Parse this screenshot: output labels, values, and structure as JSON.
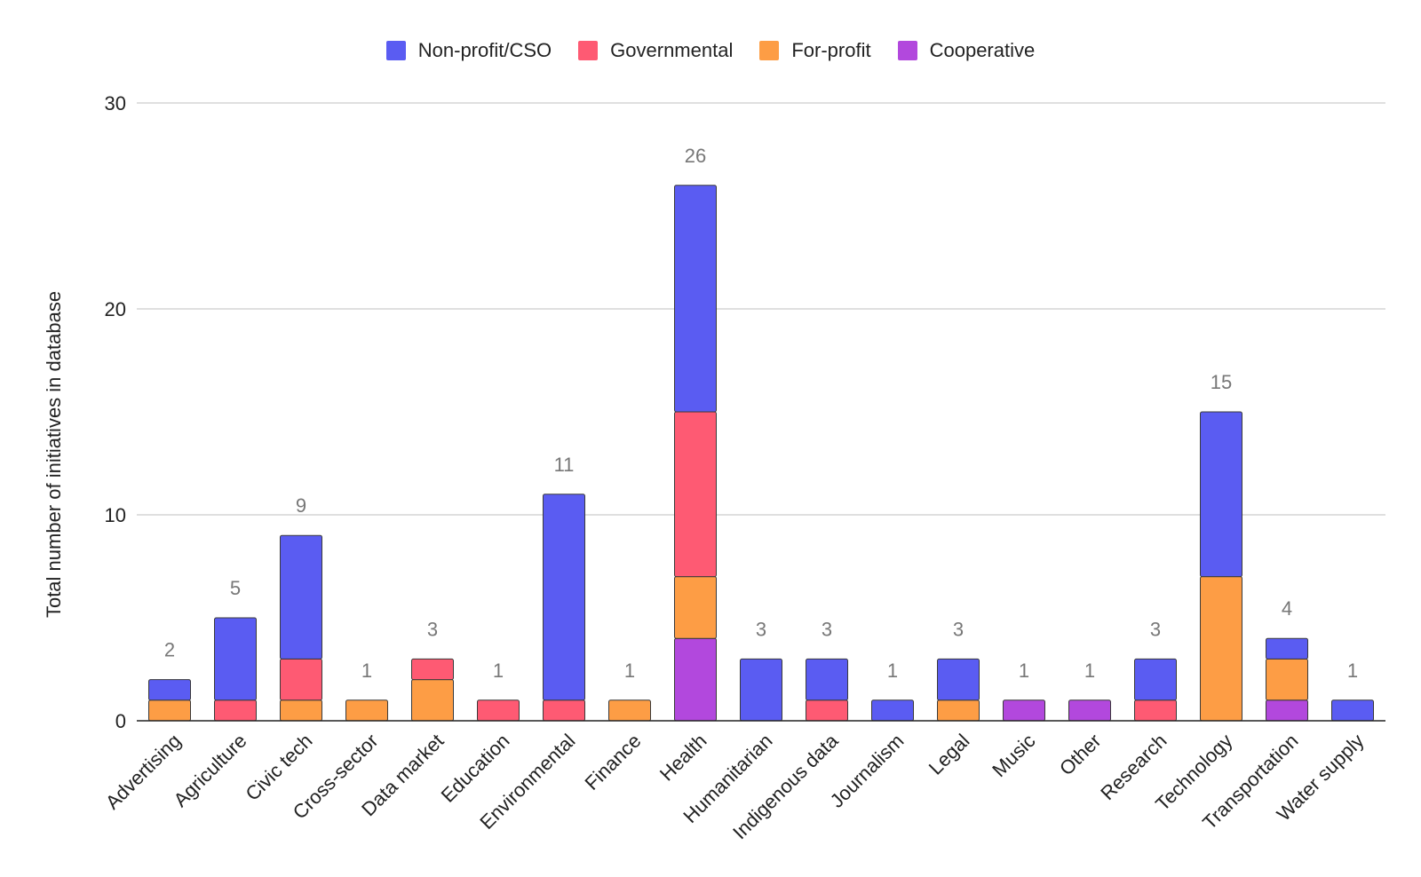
{
  "chart_data": {
    "type": "bar",
    "stacked": true,
    "ylabel": "Total number of initiatives in database",
    "xlabel": "",
    "ylim": [
      0,
      30
    ],
    "yticks": [
      0,
      10,
      20,
      30
    ],
    "grid": true,
    "legend_position": "top-center",
    "categories": [
      "Advertising",
      "Agriculture",
      "Civic tech",
      "Cross-sector",
      "Data market",
      "Education",
      "Environmental",
      "Finance",
      "Health",
      "Humanitarian",
      "Indigenous data",
      "Journalism",
      "Legal",
      "Music",
      "Other",
      "Research",
      "Technology",
      "Transportation",
      "Water supply"
    ],
    "totals": [
      2,
      5,
      9,
      1,
      3,
      1,
      11,
      1,
      26,
      3,
      3,
      1,
      3,
      1,
      1,
      3,
      15,
      4,
      1
    ],
    "stack_order": [
      "Cooperative",
      "For-profit",
      "Governmental",
      "Non-profit/CSO"
    ],
    "series": [
      {
        "name": "Non-profit/CSO",
        "color": "#5a5cf2",
        "values": [
          1,
          4,
          6,
          0,
          0,
          0,
          10,
          0,
          11,
          3,
          2,
          1,
          2,
          0,
          0,
          2,
          8,
          1,
          1
        ]
      },
      {
        "name": "Governmental",
        "color": "#fe5a73",
        "values": [
          0,
          1,
          2,
          0,
          1,
          1,
          1,
          0,
          8,
          0,
          1,
          0,
          0,
          0,
          0,
          1,
          0,
          0,
          0
        ]
      },
      {
        "name": "For-profit",
        "color": "#fd9d45",
        "values": [
          1,
          0,
          1,
          1,
          2,
          0,
          0,
          1,
          3,
          0,
          0,
          0,
          1,
          0,
          0,
          0,
          7,
          2,
          0
        ]
      },
      {
        "name": "Cooperative",
        "color": "#b248dd",
        "values": [
          0,
          0,
          0,
          0,
          0,
          0,
          0,
          0,
          4,
          0,
          0,
          0,
          0,
          1,
          1,
          0,
          0,
          1,
          0
        ]
      }
    ]
  }
}
